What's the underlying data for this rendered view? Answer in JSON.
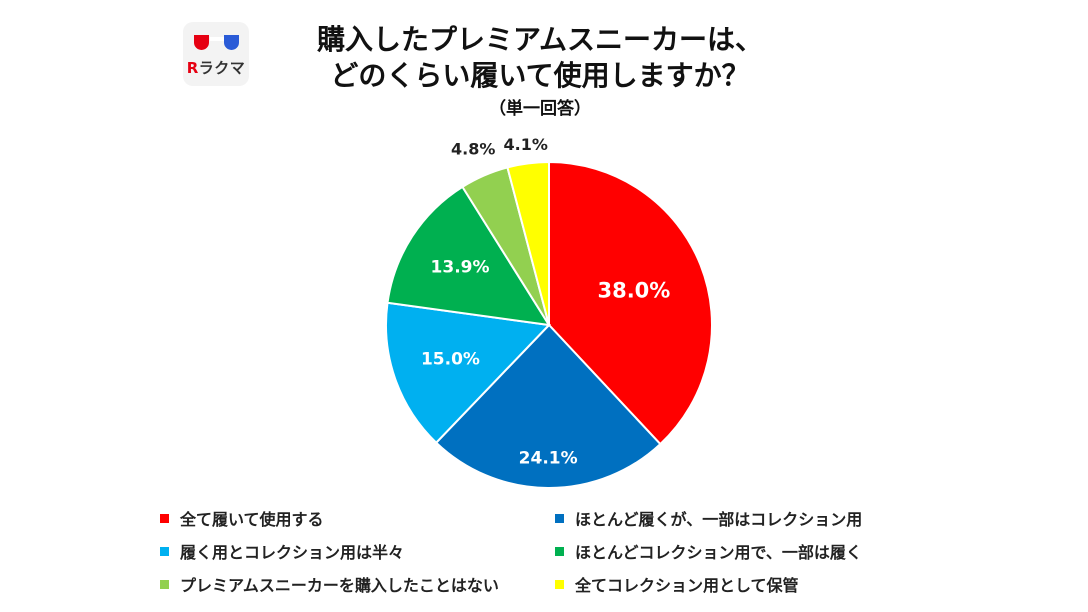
{
  "logo": {
    "brand_r": "R",
    "brand_text": "ラクマ"
  },
  "title": {
    "line1": "購入したプレミアムスニーカーは、",
    "line2": "どのくらい履いて使用しますか？",
    "note": "（単一回答）"
  },
  "chart_data": {
    "type": "pie",
    "start": "12 o'clock, clockwise",
    "slices": [
      {
        "label": "全て履いて使用する",
        "value": 38.0,
        "display": "38.0%",
        "color": "#ff0000"
      },
      {
        "label": "ほとんど履くが、一部はコレクション用",
        "value": 24.1,
        "display": "24.1%",
        "color": "#0070c0"
      },
      {
        "label": "履く用とコレクション用は半々",
        "value": 15.0,
        "display": "15.0%",
        "color": "#00b0f0"
      },
      {
        "label": "ほとんどコレクション用で、一部は履く",
        "value": 13.9,
        "display": "13.9%",
        "color": "#00b050"
      },
      {
        "label": "プレミアムスニーカーを購入したことはない",
        "value": 4.8,
        "display": "4.8%",
        "color": "#92d050"
      },
      {
        "label": "全てコレクション用として保管",
        "value": 4.1,
        "display": "4.1%",
        "color": "#ffff00"
      }
    ],
    "legend_position": "bottom"
  }
}
